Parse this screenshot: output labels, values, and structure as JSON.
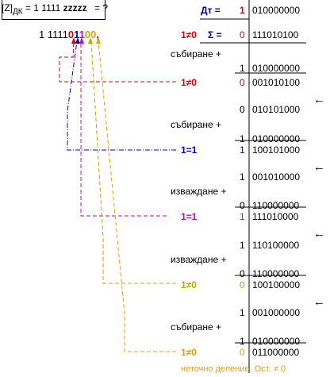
{
  "header": {
    "bracket_text": "[Z]",
    "subscript": "ДК",
    "eq_part": "= 1 1111",
    "unknown_bits": "zzzzz",
    "tail": "=  ?"
  },
  "result_number": {
    "prefix": "1 1111",
    "digits": [
      "0",
      "1",
      "1",
      "0",
      "0"
    ],
    "suffix": ",",
    "digit_colors": [
      "#e00000",
      "#0000cc",
      "#cc00cc",
      "#b0b000",
      "#e8a000"
    ]
  },
  "divisor_row": {
    "label": "Дт =",
    "sign": "1",
    "value": "010000000"
  },
  "sum_row": {
    "label": "Σ =",
    "sign": "0",
    "value": "111010100",
    "condition": "1≠0"
  },
  "steps": [
    {
      "op": "събиране  +",
      "sign": "1",
      "value": "010000000"
    },
    {
      "cond": "1≠0",
      "sign": "0",
      "value": "001010100",
      "sign_color": "#e00000",
      "arrow": "←"
    },
    {
      "sign": "0",
      "value": "010101000"
    },
    {
      "op": "събиране  +",
      "sign": "1",
      "value": "010000000"
    },
    {
      "cond": "1=1",
      "sign": "1",
      "value": "100101000",
      "sign_color": "#0000cc",
      "arrow": "←"
    },
    {
      "sign": "1",
      "value": "001010000"
    },
    {
      "op": "изваждане  +",
      "sign": "0",
      "value": "110000000"
    },
    {
      "cond": "1=1",
      "sign": "1",
      "value": "111010000",
      "sign_color": "#cc00cc",
      "arrow": "←"
    },
    {
      "sign": "1",
      "value": "110100000"
    },
    {
      "op": "изваждане  +",
      "sign": "0",
      "value": "110000000"
    },
    {
      "cond": "1≠0",
      "sign": "0",
      "value": "100100000",
      "sign_color": "#b0b000",
      "arrow": "←"
    },
    {
      "sign": "1",
      "value": "001000000"
    },
    {
      "op": "събиране  +",
      "sign": "1",
      "value": "010000000"
    },
    {
      "cond": "1≠0",
      "sign": "0",
      "value": "011000000",
      "sign_color": "#e8a000"
    }
  ],
  "footer_note": "неточно деление.  Ост. ≠ 0",
  "colors": {
    "red": "#e00000",
    "blue": "#0000cc",
    "magenta": "#cc00cc",
    "olive": "#b0b000",
    "orange": "#e8a000",
    "divisor_label": "#0000aa",
    "footer": "#e8a000"
  }
}
